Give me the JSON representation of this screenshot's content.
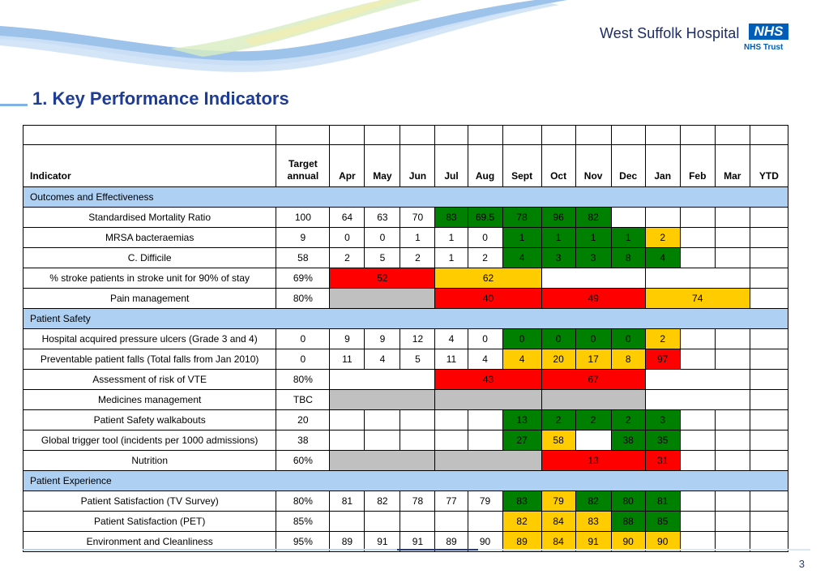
{
  "brand": {
    "name": "West Suffolk Hospital",
    "logo": "NHS",
    "trust": "NHS Trust"
  },
  "title": "1. Key Performance Indicators",
  "page_number": "3",
  "colors": {
    "green": "#008000",
    "amber": "#ffcc00",
    "red": "#ff0000",
    "grey": "#c0c0c0",
    "section": "#aed0f3",
    "title": "#1e3c96"
  },
  "table": {
    "headers": [
      "Indicator",
      "Target annual",
      "Apr",
      "May",
      "Jun",
      "Jul",
      "Aug",
      "Sept",
      "Oct",
      "Nov",
      "Dec",
      "Jan",
      "Feb",
      "Mar",
      "YTD"
    ],
    "sections": {
      "outcomes": "Outcomes and Effectiveness",
      "safety": "Patient Safety",
      "experience": "Patient Experience"
    },
    "rows": {
      "smr": {
        "indicator": "Standardised Mortality Ratio",
        "target": "100",
        "apr": "64",
        "may": "63",
        "jun": "70",
        "jul": "83",
        "aug": "69.5",
        "sep": "78",
        "oct": "96",
        "nov": "82"
      },
      "mrsa": {
        "indicator": "MRSA bacteraemias",
        "target": "9",
        "apr": "0",
        "may": "0",
        "jun": "1",
        "jul": "1",
        "aug": "0",
        "sep": "1",
        "oct": "1",
        "nov": "1",
        "dec": "1",
        "jan": "2"
      },
      "cdiff": {
        "indicator": "C. Difficile",
        "target": "58",
        "apr": "2",
        "may": "5",
        "jun": "2",
        "jul": "1",
        "aug": "2",
        "sep": "4",
        "oct": "3",
        "nov": "3",
        "dec": "8",
        "jan": "4"
      },
      "stroke": {
        "indicator": "% stroke patients in stroke unit for 90% of stay",
        "target": "69%",
        "q1": "52",
        "q2": "62"
      },
      "pain": {
        "indicator": "Pain management",
        "target": "80%",
        "q2": "40",
        "q3": "49",
        "q4": "74"
      },
      "pressure": {
        "indicator": "Hospital acquired pressure ulcers (Grade 3 and 4)",
        "target": "0",
        "apr": "9",
        "may": "9",
        "jun": "12",
        "jul": "4",
        "aug": "0",
        "sep": "0",
        "oct": "0",
        "nov": "0",
        "dec": "0",
        "jan": "2"
      },
      "falls": {
        "indicator": "Preventable patient falls (Total falls from Jan 2010)",
        "target": "0",
        "apr": "11",
        "may": "4",
        "jun": "5",
        "jul": "11",
        "aug": "4",
        "sep": "4",
        "oct": "20",
        "nov": "17",
        "dec": "8",
        "jan": "97"
      },
      "vte": {
        "indicator": "Assessment of risk of VTE",
        "target": "80%",
        "q2": "43",
        "q3": "67"
      },
      "meds": {
        "indicator": "Medicines management",
        "target": "TBC"
      },
      "walkabouts": {
        "indicator": "Patient Safety walkabouts",
        "target": "20",
        "sep": "13",
        "oct": "2",
        "nov": "2",
        "dec": "2",
        "jan": "3"
      },
      "trigger": {
        "indicator": "Global trigger tool (incidents per 1000 admissions)",
        "target": "38",
        "sep": "27",
        "oct": "58",
        "dec": "38",
        "jan": "35"
      },
      "nutrition": {
        "indicator": "Nutrition",
        "target": "60%",
        "q3": "13",
        "jan": "31"
      },
      "tv": {
        "indicator": "Patient Satisfaction (TV Survey)",
        "target": "80%",
        "apr": "81",
        "may": "82",
        "jun": "78",
        "jul": "77",
        "aug": "79",
        "sep": "83",
        "oct": "79",
        "nov": "82",
        "dec": "80",
        "jan": "81"
      },
      "pet": {
        "indicator": "Patient Satisfaction (PET)",
        "target": "85%",
        "sep": "82",
        "oct": "84",
        "nov": "83",
        "dec": "88",
        "jan": "85"
      },
      "env": {
        "indicator": "Environment and Cleanliness",
        "target": "95%",
        "apr": "89",
        "may": "91",
        "jun": "91",
        "jul": "89",
        "aug": "90",
        "sep": "89",
        "oct": "84",
        "nov": "91",
        "dec": "90",
        "jan": "90"
      }
    }
  }
}
